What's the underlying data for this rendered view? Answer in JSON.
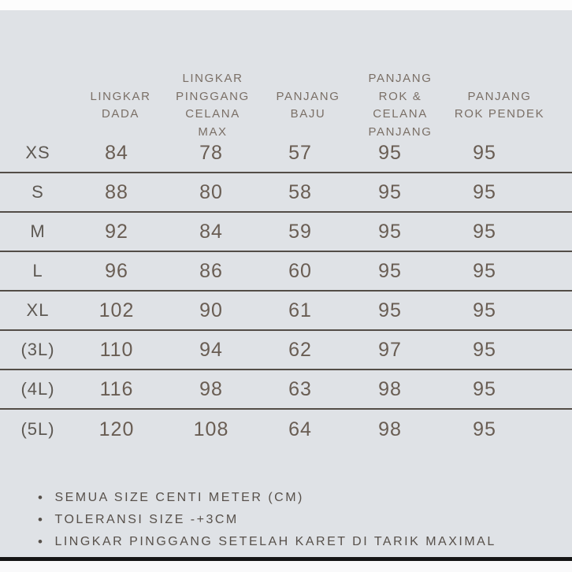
{
  "colors": {
    "background": "#dfe2e6",
    "top_strip": "#fdfdfd",
    "bottom_bar": "#151515",
    "bottom_strip": "#f9f9fa",
    "header_text": "#7a6f66",
    "value_text": "#695d53",
    "size_label_text": "#5d5852",
    "note_text": "#57504a",
    "separator_line": "#403831"
  },
  "table": {
    "headers": [
      "LINGKAR\nDADA",
      "LINGKAR\nPINGGANG\nCELANA\nMAX",
      "PANJANG\nBAJU",
      "PANJANG\nROK &\nCELANA\nPANJANG",
      "PANJANG\nROK PENDEK"
    ],
    "rows": [
      {
        "size": "XS",
        "values": [
          "84",
          "78",
          "57",
          "95",
          "95"
        ]
      },
      {
        "size": "S",
        "values": [
          "88",
          "80",
          "58",
          "95",
          "95"
        ]
      },
      {
        "size": "M",
        "values": [
          "92",
          "84",
          "59",
          "95",
          "95"
        ]
      },
      {
        "size": "L",
        "values": [
          "96",
          "86",
          "60",
          "95",
          "95"
        ]
      },
      {
        "size": "XL",
        "values": [
          "102",
          "90",
          "61",
          "95",
          "95"
        ]
      },
      {
        "size": "(3L)",
        "values": [
          "110",
          "94",
          "62",
          "97",
          "95"
        ]
      },
      {
        "size": "(4L)",
        "values": [
          "116",
          "98",
          "63",
          "98",
          "95"
        ]
      },
      {
        "size": "(5L)",
        "values": [
          "120",
          "108",
          "64",
          "98",
          "95"
        ]
      }
    ]
  },
  "notes": {
    "bullet": "•",
    "items": [
      "SEMUA SIZE CENTI METER (CM)",
      "TOLERANSI SIZE -+3CM",
      "LINGKAR PINGGANG SETELAH KARET DI TARIK MAXIMAL"
    ]
  },
  "chart_data": {
    "type": "table",
    "columns": [
      "",
      "LINGKAR DADA",
      "LINGKAR PINGGANG CELANA MAX",
      "PANJANG BAJU",
      "PANJANG ROK & CELANA PANJANG",
      "PANJANG ROK PENDEK"
    ],
    "rows": [
      [
        "XS",
        84,
        78,
        57,
        95,
        95
      ],
      [
        "S",
        88,
        80,
        58,
        95,
        95
      ],
      [
        "M",
        92,
        84,
        59,
        95,
        95
      ],
      [
        "L",
        96,
        86,
        60,
        95,
        95
      ],
      [
        "XL",
        102,
        90,
        61,
        95,
        95
      ],
      [
        "(3L)",
        110,
        94,
        62,
        97,
        95
      ],
      [
        "(4L)",
        116,
        98,
        63,
        98,
        95
      ],
      [
        "(5L)",
        120,
        108,
        64,
        98,
        95
      ]
    ],
    "units": "cm",
    "notes": [
      "SEMUA SIZE CENTI METER (CM)",
      "TOLERANSI SIZE -+3CM",
      "LINGKAR PINGGANG SETELAH KARET DI TARIK MAXIMAL"
    ]
  }
}
